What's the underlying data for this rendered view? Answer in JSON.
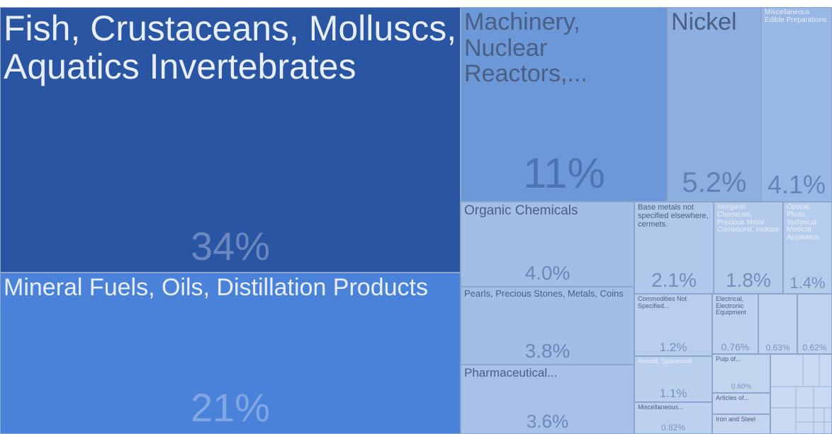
{
  "chart_data": {
    "type": "treemap",
    "categories": [
      "Fish, Crustaceans, Molluscs, Aquatics Invertebrates",
      "Mineral Fuels, Oils, Distillation Products",
      "Machinery, Nuclear Reactors,...",
      "Nickel",
      "Miscellaneous Edible Preparations",
      "Organic Chemicals",
      "Pearls, Precious Stones, Metals, Coins",
      "Pharmaceutical...",
      "Base metals not specified elsewhere, cermets.",
      "Inorganic Chemicals, Precious Metal Compound, Isotope",
      "Optical, Photo, Technical, Medical Apparatus",
      "Commodities Not Specified...",
      "Aircraft, Spacecraft",
      "Miscellaneous...",
      "Electrical, Electronic Equipment",
      null,
      null,
      "Pulp of...",
      "Articles of...",
      "Iron and Steel"
    ],
    "values": [
      34,
      21,
      11,
      5.2,
      4.1,
      4.0,
      3.8,
      3.6,
      2.1,
      1.8,
      1.4,
      1.2,
      1.1,
      0.82,
      0.76,
      0.63,
      0.62,
      0.6,
      0.4,
      0.35
    ],
    "value_labels": [
      "34%",
      "21%",
      "11%",
      "5.2%",
      "4.1%",
      "4.0%",
      "3.8%",
      "3.6%",
      "2.1%",
      "1.8%",
      "1.4%",
      "1.2%",
      "1.1%",
      "0.82%",
      "0.76%",
      "0.63%",
      "0.62%",
      "0.60%",
      null,
      null
    ],
    "colors": [
      "#2a55a3",
      "#4a82d9",
      "#6d98d8",
      "#8cafe0",
      "#99b7e4",
      "#a3bee6",
      "#a3bee6",
      "#a6c0e7",
      "#b1c8ea",
      "#b3caeb",
      "#b6ccec",
      "#b9ceec",
      "#bbd0ed",
      "#bdd1ee",
      "#bdd1ee",
      "#c0d3ee",
      "#c0d3ee",
      "#c2d5ef",
      "#c4d6ef",
      "#c4d6ef"
    ]
  }
}
